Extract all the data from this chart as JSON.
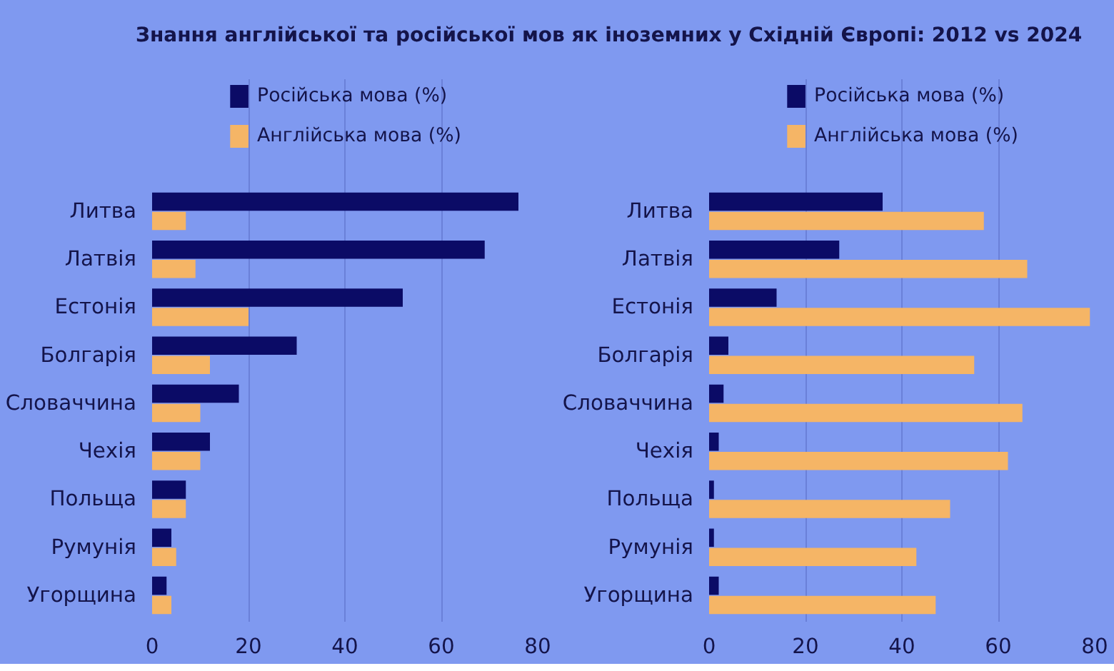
{
  "chart_data": [
    {
      "type": "bar",
      "orientation": "horizontal",
      "title": "Знання англійської та російської мов як іноземних у Східній Європі: 2012 vs 2024",
      "categories": [
        "Литва",
        "Латвія",
        "Естонія",
        "Болгарія",
        "Словаччина",
        "Чехія",
        "Польща",
        "Румунія",
        "Угорщина"
      ],
      "series": [
        {
          "name": "Російська мова (%)",
          "color": "#0b0b66",
          "values": [
            76,
            69,
            52,
            30,
            18,
            12,
            7,
            4,
            3
          ]
        },
        {
          "name": "Англійська мова (%)",
          "color": "#f5b566",
          "values": [
            7,
            9,
            20,
            12,
            10,
            10,
            7,
            5,
            4
          ]
        }
      ],
      "xlim": [
        0,
        80
      ],
      "xticks": [
        0,
        20,
        40,
        60,
        80
      ],
      "grid": "x",
      "legend": "top"
    },
    {
      "type": "bar",
      "orientation": "horizontal",
      "categories": [
        "Литва",
        "Латвія",
        "Естонія",
        "Болгарія",
        "Словаччина",
        "Чехія",
        "Польща",
        "Румунія",
        "Угорщина"
      ],
      "series": [
        {
          "name": "Російська мова (%)",
          "color": "#0b0b66",
          "values": [
            36,
            27,
            14,
            4,
            3,
            2,
            1,
            1,
            2
          ]
        },
        {
          "name": "Англійська мова (%)",
          "color": "#f5b566",
          "values": [
            57,
            66,
            79,
            55,
            65,
            62,
            50,
            43,
            47
          ]
        }
      ],
      "xlim": [
        0,
        80
      ],
      "xticks": [
        0,
        20,
        40,
        60,
        80
      ],
      "grid": "x",
      "legend": "top"
    }
  ]
}
